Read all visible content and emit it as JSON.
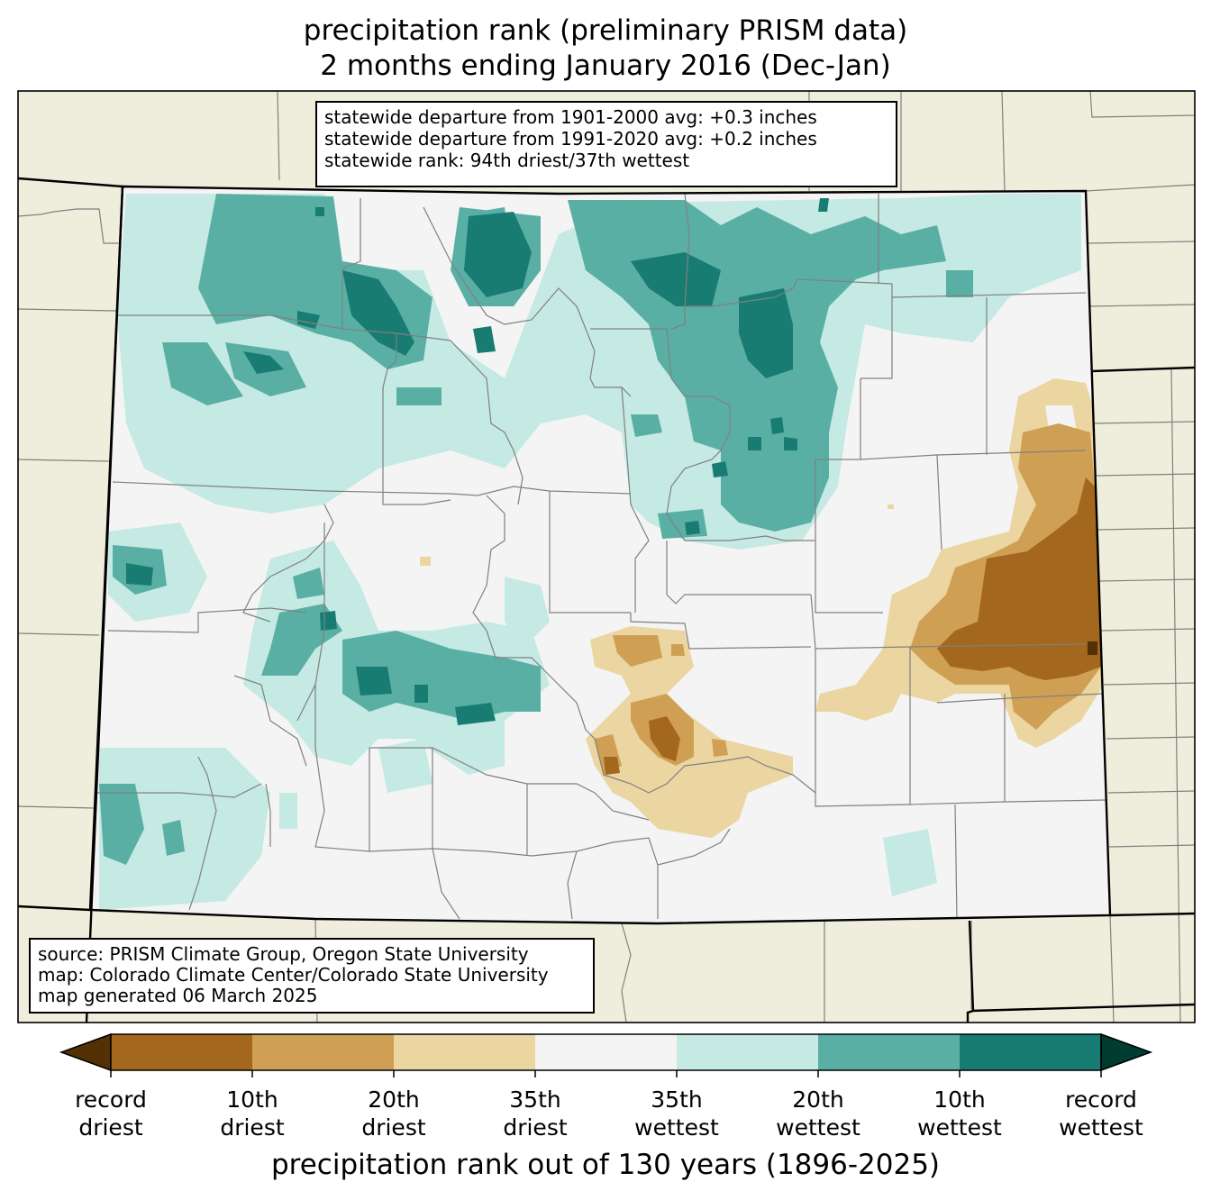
{
  "title": {
    "line1": "precipitation rank (preliminary PRISM data)",
    "line2": "2 months ending January 2016 (Dec-Jan)"
  },
  "stats_box": {
    "line1": "statewide departure from 1901-2000 avg: +0.3 inches",
    "line2": "statewide departure from 1991-2020 avg: +0.2 inches",
    "line3": "statewide rank: 94th driest/37th wettest"
  },
  "source_box": {
    "line1": "source: PRISM Climate Group, Oregon State University",
    "line2": "map: Colorado Climate Center/Colorado State University",
    "line3": "map generated 06 March 2025"
  },
  "colorbar": {
    "title": "precipitation rank out of 130 years (1896-2025)",
    "colors": {
      "below_record": "#543005",
      "record_to_10th_driest": "#a3671d",
      "10th_to_20th_driest": "#cfa054",
      "20th_to_35th_driest": "#ebd5a1",
      "middle": "#f3f4f3",
      "35th_to_20th_wettest": "#c5e9e3",
      "20th_to_10th_wettest": "#5aafa5",
      "10th_to_record_wettest": "#187c73",
      "above_record": "#003c30"
    },
    "ticks": [
      {
        "line1": "record",
        "line2": "driest"
      },
      {
        "line1": "10th",
        "line2": "driest"
      },
      {
        "line1": "20th",
        "line2": "driest"
      },
      {
        "line1": "35th",
        "line2": "driest"
      },
      {
        "line1": "35th",
        "line2": "wettest"
      },
      {
        "line1": "20th",
        "line2": "wettest"
      },
      {
        "line1": "10th",
        "line2": "wettest"
      },
      {
        "line1": "record",
        "line2": "wettest"
      }
    ]
  },
  "map_colors": {
    "background_land": "#efeddc",
    "county_lines": "#808080",
    "state_lines": "#000000"
  }
}
